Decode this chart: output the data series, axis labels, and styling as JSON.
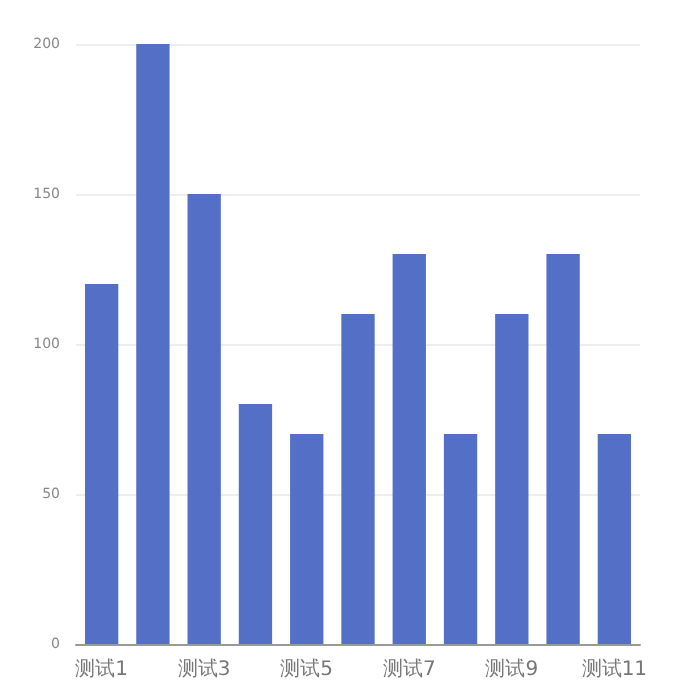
{
  "chart_data": {
    "type": "bar",
    "categories": [
      "测试1",
      null,
      "测试3",
      null,
      "测试5",
      null,
      "测试7",
      null,
      "测试9",
      null,
      "测试11"
    ],
    "values": [
      120,
      200,
      150,
      80,
      70,
      110,
      130,
      70,
      110,
      130,
      70
    ],
    "color": "#5470c6",
    "ylim": [
      0,
      200
    ],
    "yticks": [
      0,
      50,
      100,
      150,
      200
    ],
    "grid": "y"
  }
}
